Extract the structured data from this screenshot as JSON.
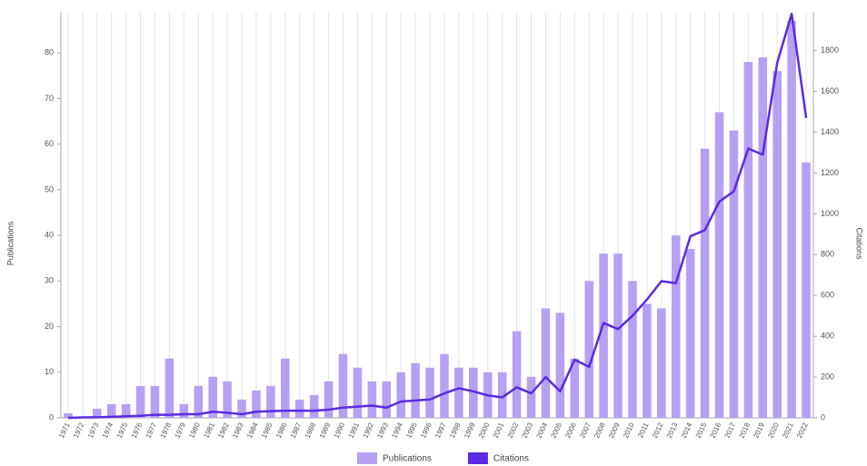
{
  "chart_data": {
    "type": "bar",
    "categories": [
      "1971",
      "1972",
      "1973",
      "1974",
      "1975",
      "1976",
      "1977",
      "1978",
      "1979",
      "1980",
      "1981",
      "1982",
      "1983",
      "1984",
      "1985",
      "1986",
      "1987",
      "1988",
      "1989",
      "1990",
      "1991",
      "1992",
      "1993",
      "1994",
      "1995",
      "1996",
      "1997",
      "1998",
      "1999",
      "2000",
      "2001",
      "2002",
      "2003",
      "2004",
      "2005",
      "2006",
      "2007",
      "2008",
      "2009",
      "2010",
      "2011",
      "2012",
      "2013",
      "2014",
      "2015",
      "2016",
      "2017",
      "2018",
      "2019",
      "2020",
      "2021",
      "2022"
    ],
    "series": [
      {
        "name": "Publications",
        "type": "bar",
        "color": "#b6a0f2",
        "values": [
          1,
          0,
          2,
          3,
          3,
          7,
          7,
          13,
          3,
          7,
          9,
          8,
          4,
          6,
          7,
          13,
          4,
          5,
          8,
          14,
          11,
          8,
          8,
          10,
          12,
          11,
          14,
          11,
          11,
          10,
          10,
          19,
          9,
          24,
          23,
          13,
          30,
          36,
          36,
          30,
          25,
          24,
          40,
          37,
          59,
          67,
          63,
          78,
          79,
          76,
          87,
          56
        ]
      },
      {
        "name": "Citations",
        "type": "line",
        "axis": "y2",
        "color": "#5a2be0",
        "values": [
          0,
          2,
          3,
          5,
          8,
          10,
          15,
          15,
          18,
          18,
          30,
          25,
          18,
          30,
          33,
          35,
          35,
          35,
          40,
          50,
          55,
          60,
          50,
          80,
          85,
          90,
          120,
          145,
          130,
          110,
          100,
          150,
          120,
          200,
          130,
          285,
          250,
          465,
          435,
          500,
          580,
          670,
          660,
          890,
          920,
          1060,
          1110,
          1320,
          1290,
          1740,
          1980,
          1470
        ]
      }
    ],
    "y_label": "Publications",
    "y2_label": "Citations",
    "ylim": [
      0,
      89
    ],
    "yticks": [
      0,
      10,
      20,
      30,
      40,
      50,
      60,
      70,
      80
    ],
    "y2lim": [
      0,
      1990
    ],
    "y2ticks": [
      0,
      200,
      400,
      600,
      800,
      1000,
      1200,
      1400,
      1600,
      1800
    ],
    "grid": "x",
    "legend": "bottom"
  }
}
